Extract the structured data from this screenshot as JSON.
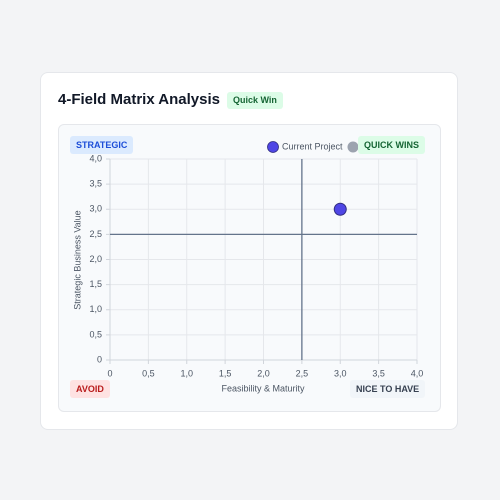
{
  "header": {
    "title": "4-Field Matrix Analysis",
    "badge": "Quick Win"
  },
  "chart_data": {
    "type": "scatter",
    "x_label": "Feasibility & Maturity",
    "y_label": "Strategic Business Value",
    "series": [
      {
        "name": "Current Project",
        "color": "#4f46e5",
        "x": [
          3.0
        ],
        "values": [
          3.0
        ]
      }
    ],
    "xlim": [
      0,
      4
    ],
    "ylim": [
      0,
      4
    ],
    "xticks": [
      0,
      {
        "value": 0.5,
        "label": "0,5"
      },
      {
        "value": 1,
        "label": "1,0"
      },
      {
        "value": 1.5,
        "label": "1,5"
      },
      {
        "value": 2,
        "label": "2,0"
      },
      {
        "value": 2.5,
        "label": "2,5"
      },
      {
        "value": 3,
        "label": "3,0"
      },
      {
        "value": 3.5,
        "label": "3,5"
      },
      {
        "value": 4,
        "label": "4,0"
      }
    ],
    "yticks": [
      0,
      {
        "value": 0.5,
        "label": "0,5"
      },
      {
        "value": 1,
        "label": "1,0"
      },
      {
        "value": 1.5,
        "label": "1,5"
      },
      {
        "value": 2,
        "label": "2,0"
      },
      {
        "value": 2.5,
        "label": "2,5"
      },
      {
        "value": 3,
        "label": "3,0"
      },
      {
        "value": 3.5,
        "label": "3,5"
      },
      {
        "value": 4,
        "label": "4,0"
      }
    ],
    "grid": true,
    "thresholds": {
      "x": 2.5,
      "y": 2.5
    },
    "quadrants": {
      "top_left": "STRATEGIC",
      "top_right": "QUICK WINS",
      "bottom_left": "AVOID",
      "bottom_right": "NICE TO HAVE"
    }
  }
}
